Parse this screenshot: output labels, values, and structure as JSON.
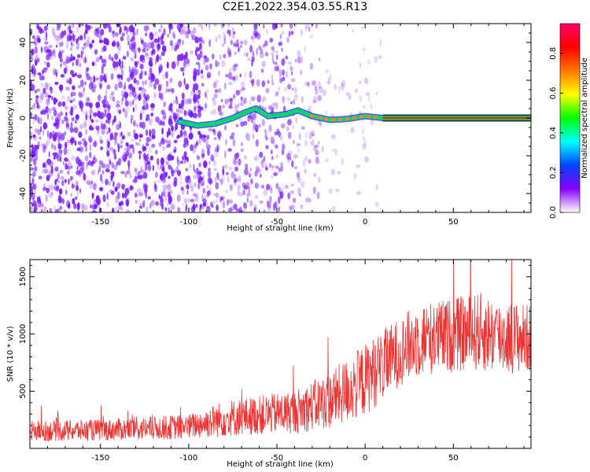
{
  "page_title": "C2E1.2022.354.03.55.R13",
  "colors": {
    "spectrogram_speckle": "#7a1fff",
    "snr_line": "#ee3333",
    "colormap": [
      "#ffffff",
      "#8800ff",
      "#0044ff",
      "#00ffff",
      "#00ff00",
      "#ffff00",
      "#ff7700",
      "#ff0000",
      "#ff0066"
    ]
  },
  "chart_data": [
    {
      "type": "heatmap",
      "title": "",
      "xlabel": "Height of straight line (km)",
      "ylabel": "Frequency (Hz)",
      "xlim": [
        -190,
        94
      ],
      "ylim": [
        -50,
        50
      ],
      "x_ticks": [
        -150,
        -100,
        -50,
        0,
        50
      ],
      "y_ticks": [
        -40,
        -20,
        0,
        20,
        40
      ],
      "colorbar": {
        "label": "Normalized spectral amplitude",
        "range": [
          0,
          0.95
        ],
        "ticks": [
          0.0,
          0.2,
          0.4,
          0.6,
          0.8
        ]
      },
      "ridge_frequency_hz": {
        "x": [
          -105,
          -95,
          -85,
          -75,
          -68,
          -62,
          -55,
          -45,
          -38,
          -30,
          -20,
          -10,
          0,
          10,
          94
        ],
        "y": [
          -2,
          -4,
          -3,
          0,
          3,
          5,
          1,
          2,
          4,
          1,
          -1,
          -0.5,
          1,
          0,
          0
        ]
      },
      "noise_extent_km": [
        -190,
        10
      ],
      "grid": false
    },
    {
      "type": "line",
      "title": "",
      "xlabel": "Height of straight line (km)",
      "ylabel": "SNR (10 * v/v)",
      "xlim": [
        -190,
        94
      ],
      "ylim": [
        0,
        1650
      ],
      "x_ticks": [
        -150,
        -100,
        -50,
        0,
        50
      ],
      "y_ticks": [
        500,
        1000,
        1500
      ],
      "envelope": {
        "x": [
          -190,
          -150,
          -100,
          -80,
          -60,
          -40,
          -20,
          0,
          20,
          30,
          40,
          55,
          65,
          75,
          94
        ],
        "mean": [
          150,
          160,
          190,
          260,
          290,
          320,
          420,
          600,
          850,
          950,
          970,
          1000,
          1020,
          980,
          960
        ],
        "spread": [
          90,
          95,
          110,
          160,
          170,
          190,
          250,
          320,
          300,
          330,
          320,
          330,
          350,
          330,
          300
        ]
      },
      "grid": false
    }
  ]
}
